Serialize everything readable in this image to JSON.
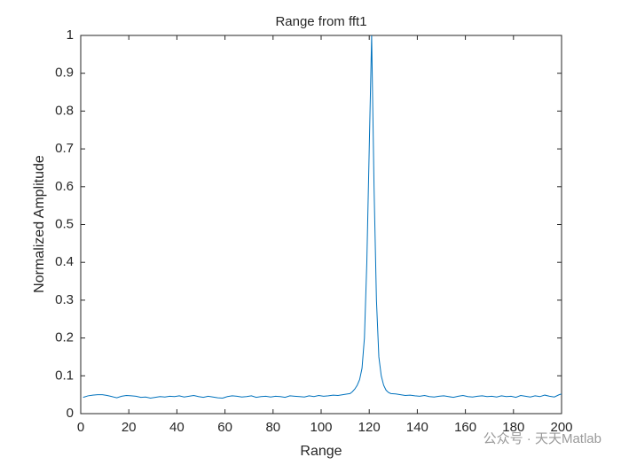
{
  "chart_data": {
    "type": "line",
    "title": "Range from fft1",
    "xlabel": "Range",
    "ylabel": "Normalized Amplitude",
    "watermark": "公众号 · 天天Matlab",
    "x": [
      1,
      3,
      5,
      7,
      9,
      11,
      13,
      15,
      17,
      19,
      21,
      23,
      25,
      27,
      29,
      31,
      33,
      35,
      37,
      39,
      41,
      43,
      45,
      47,
      49,
      51,
      53,
      55,
      57,
      59,
      61,
      63,
      65,
      67,
      69,
      71,
      73,
      75,
      77,
      79,
      81,
      83,
      85,
      87,
      89,
      91,
      93,
      95,
      97,
      99,
      101,
      103,
      105,
      107,
      109,
      111,
      112,
      113,
      114,
      115,
      116,
      117,
      118,
      119,
      120,
      121,
      122,
      123,
      124,
      125,
      126,
      127,
      128,
      129,
      131,
      133,
      135,
      137,
      139,
      141,
      143,
      145,
      147,
      149,
      151,
      153,
      155,
      157,
      159,
      161,
      163,
      165,
      167,
      169,
      171,
      173,
      175,
      177,
      179,
      181,
      183,
      185,
      187,
      189,
      191,
      193,
      195,
      197,
      199,
      200
    ],
    "series": [
      {
        "name": "fft1",
        "color": "#0072bd",
        "values": [
          0.043,
          0.047,
          0.049,
          0.05,
          0.05,
          0.048,
          0.045,
          0.042,
          0.046,
          0.048,
          0.047,
          0.046,
          0.043,
          0.044,
          0.041,
          0.043,
          0.045,
          0.044,
          0.046,
          0.045,
          0.047,
          0.044,
          0.046,
          0.048,
          0.045,
          0.043,
          0.046,
          0.044,
          0.042,
          0.041,
          0.045,
          0.047,
          0.046,
          0.044,
          0.045,
          0.047,
          0.043,
          0.045,
          0.046,
          0.044,
          0.046,
          0.045,
          0.043,
          0.047,
          0.046,
          0.045,
          0.044,
          0.047,
          0.045,
          0.048,
          0.046,
          0.047,
          0.049,
          0.048,
          0.05,
          0.052,
          0.053,
          0.058,
          0.065,
          0.075,
          0.09,
          0.12,
          0.2,
          0.4,
          0.7,
          1,
          0.6,
          0.3,
          0.15,
          0.1,
          0.075,
          0.062,
          0.056,
          0.053,
          0.052,
          0.05,
          0.048,
          0.049,
          0.047,
          0.046,
          0.048,
          0.045,
          0.044,
          0.046,
          0.047,
          0.045,
          0.043,
          0.046,
          0.048,
          0.045,
          0.044,
          0.046,
          0.047,
          0.045,
          0.046,
          0.044,
          0.047,
          0.045,
          0.046,
          0.043,
          0.048,
          0.046,
          0.044,
          0.047,
          0.045,
          0.049,
          0.046,
          0.044,
          0.05,
          0.052
        ]
      }
    ],
    "xlim": [
      0,
      200
    ],
    "ylim": [
      0,
      1
    ],
    "xticks": [
      0,
      20,
      40,
      60,
      80,
      100,
      120,
      140,
      160,
      180,
      200
    ],
    "yticks": [
      0,
      0.1,
      0.2,
      0.3,
      0.4,
      0.5,
      0.6,
      0.7,
      0.8,
      0.9,
      1
    ],
    "grid": false
  }
}
